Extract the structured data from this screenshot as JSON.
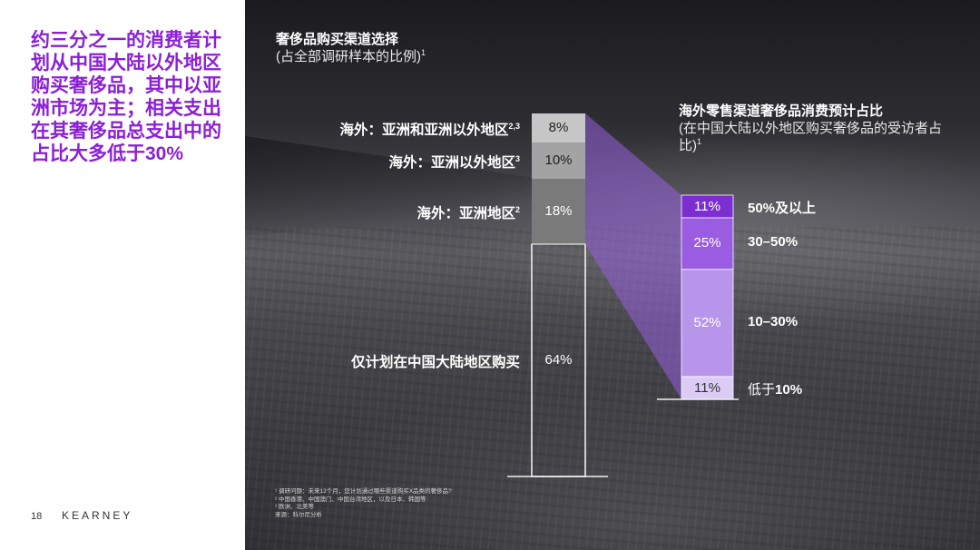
{
  "headline": "约三分之一的消费者计划从中国大陆以外地区购买奢侈品，其中以亚洲市场为主；相关支出在其奢侈品总支出中的占比大多低于30%",
  "page_number": "18",
  "brand": "KEARNEY",
  "chart_data": [
    {
      "type": "bar",
      "stacked": true,
      "title": "奢侈品购买渠道选择",
      "subtitle": "(占全部调研样本的比例)",
      "subtitle_sup": "1",
      "categories": [
        "海外：亚洲和亚洲以外地区",
        "海外：亚洲以外地区",
        "海外：亚洲地区",
        "仅计划在中国大陆地区购买"
      ],
      "category_sups": [
        "2,3",
        "3",
        "2",
        ""
      ],
      "values": [
        8,
        10,
        18,
        64
      ],
      "value_labels": [
        "8%",
        "10%",
        "18%",
        "64%"
      ],
      "colors": [
        "#c6c6c6",
        "#a3a3a3",
        "#7a7a7a",
        "#000000"
      ]
    },
    {
      "type": "bar",
      "stacked": true,
      "title": "海外零售渠道奢侈品消费预计占比",
      "subtitle": "(在中国大陆以外地区购买奢侈品的受访者占比)",
      "subtitle_sup": "1",
      "categories": [
        "50%及以上",
        "30–50%",
        "10–30%",
        "低于10%"
      ],
      "category_parts": [
        [
          "",
          "50%及以上"
        ],
        [
          "",
          "30–50%"
        ],
        [
          "",
          "10–30%"
        ],
        [
          "低于",
          "10%"
        ]
      ],
      "values": [
        11,
        25,
        52,
        11
      ],
      "value_labels": [
        "11%",
        "25%",
        "52%",
        "11%"
      ],
      "colors": [
        "#7b2fd1",
        "#9a5ce0",
        "#b795ea",
        "#dccbf5"
      ]
    }
  ],
  "footnotes": [
    "¹ 调研问题：未来12个月，您计划通过哪些渠道购买X品类的奢侈品?",
    "² 中国香港、中国澳门、中国台湾地区，以及日本、韩国等",
    "³ 欧洲、北美等",
    "来源：科尔尼分析"
  ]
}
